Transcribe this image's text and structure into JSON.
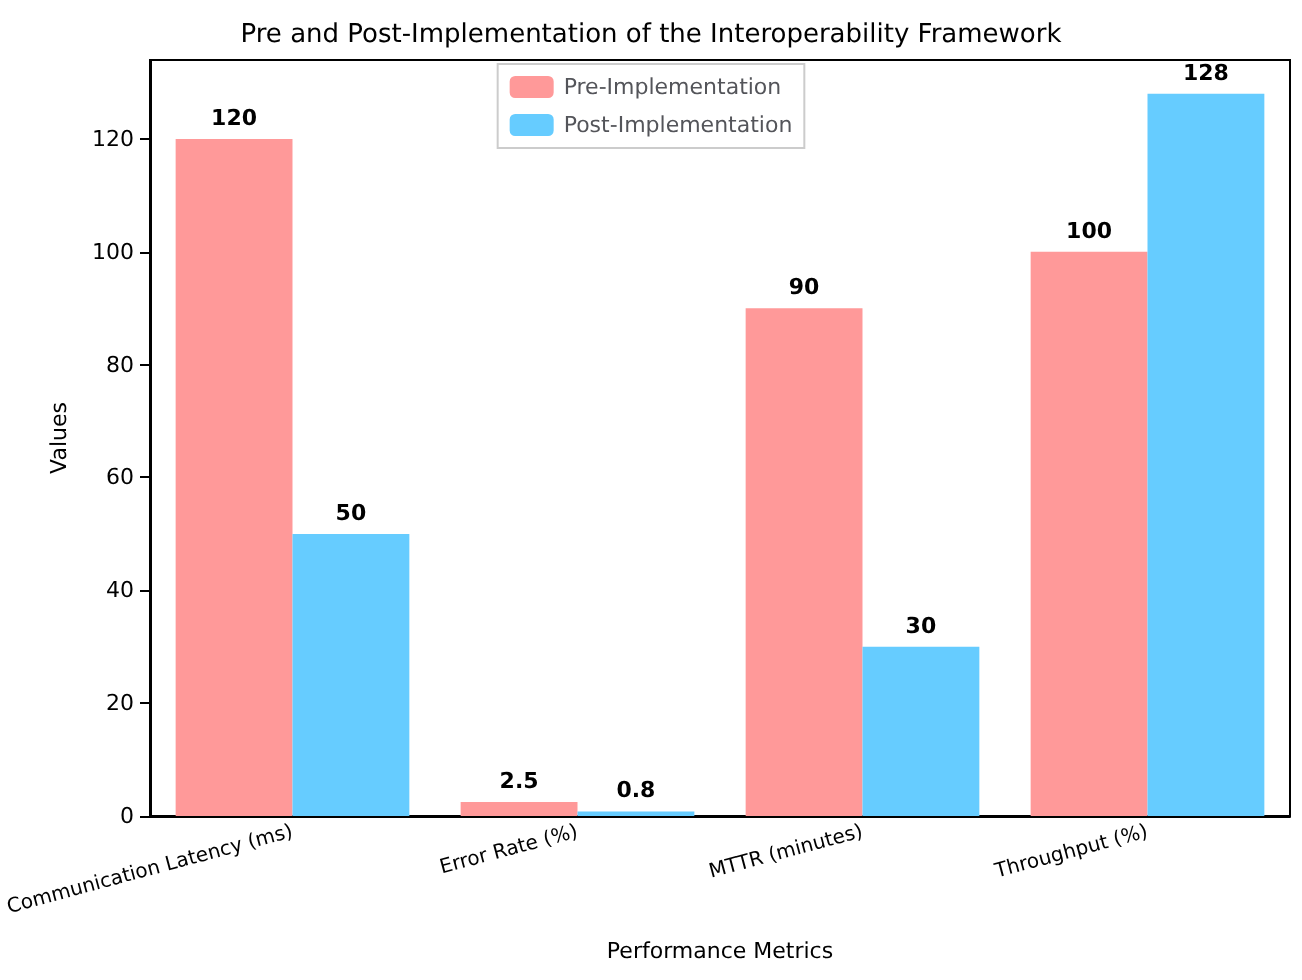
{
  "chart_data": {
    "type": "bar",
    "title": "Pre and Post-Implementation of the Interoperability Framework",
    "xlabel": "Performance Metrics",
    "ylabel": "Values",
    "categories": [
      "Communication Latency (ms)",
      "Error Rate (%)",
      "MTTR (minutes)",
      "Throughput (%)"
    ],
    "series": [
      {
        "name": "Pre-Implementation",
        "color": "#ff9999",
        "values": [
          120,
          2.5,
          90,
          100
        ]
      },
      {
        "name": "Post-Implementation",
        "color": "#66ccff",
        "values": [
          50,
          0.8,
          30,
          128
        ]
      }
    ],
    "ylim": [
      0,
      134
    ],
    "yticks": [
      0,
      20,
      40,
      60,
      80,
      100,
      120
    ],
    "data_labels": true,
    "legend": "top",
    "grid": false
  }
}
